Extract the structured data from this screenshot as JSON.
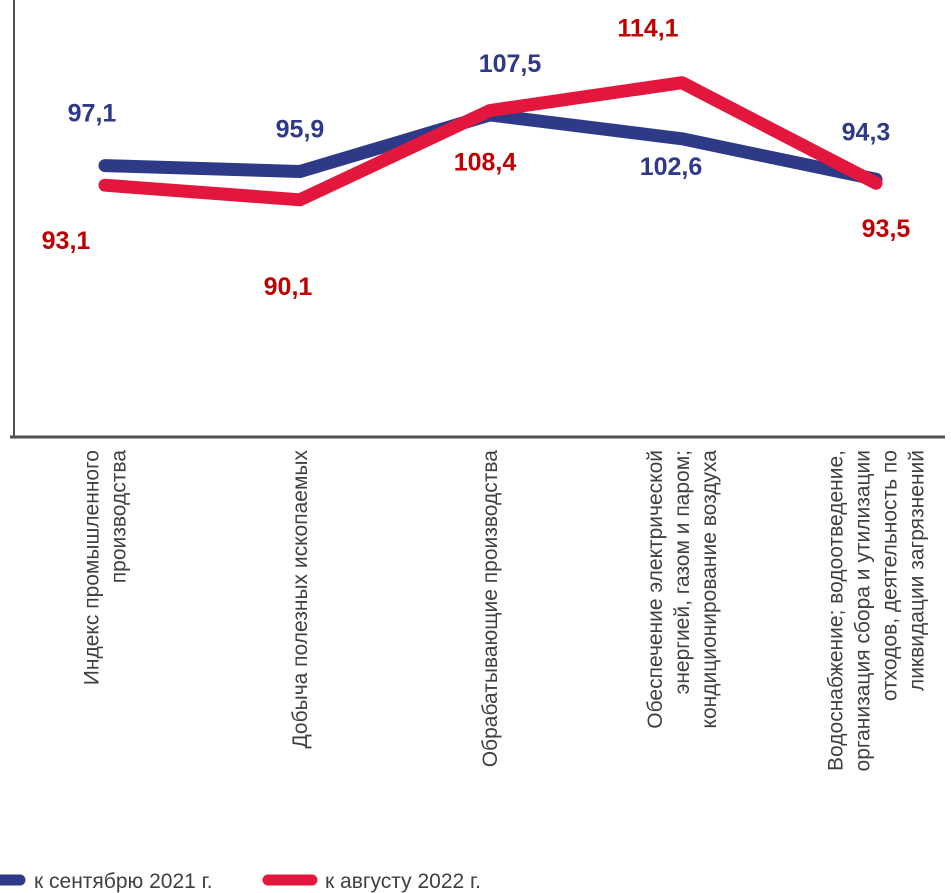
{
  "chart_data": {
    "type": "line",
    "categories": [
      [
        "Индекс промышленного",
        "производства"
      ],
      [
        "Добыча полезных ископаемых"
      ],
      [
        "Обрабатывающие производства"
      ],
      [
        "Обеспечение электрической",
        "энергией,  газом и паром;",
        "кондиционирование  воздуха"
      ],
      [
        "Водоснабжение;  водоотведение,",
        "организация сбора и утилизации",
        "отходов, деятельность по",
        "ликвидации загрязнений"
      ]
    ],
    "series": [
      {
        "name": "к сентябрю 2021 г.",
        "color": "#2e3a87",
        "values": [
          97.1,
          95.9,
          107.5,
          102.6,
          94.3
        ],
        "labels": [
          "97,1",
          "95,9",
          "107,5",
          "102,6",
          "94,3"
        ]
      },
      {
        "name": "к августу 2022 г.",
        "color": "#e3173e",
        "values": [
          93.1,
          90.1,
          108.4,
          114.1,
          93.5
        ],
        "labels": [
          "93,1",
          "90,1",
          "108,4",
          "114,1",
          "93,5"
        ]
      }
    ],
    "label_color_secondary": "#c00000",
    "legend_position": "bottom-left",
    "grid": false
  }
}
